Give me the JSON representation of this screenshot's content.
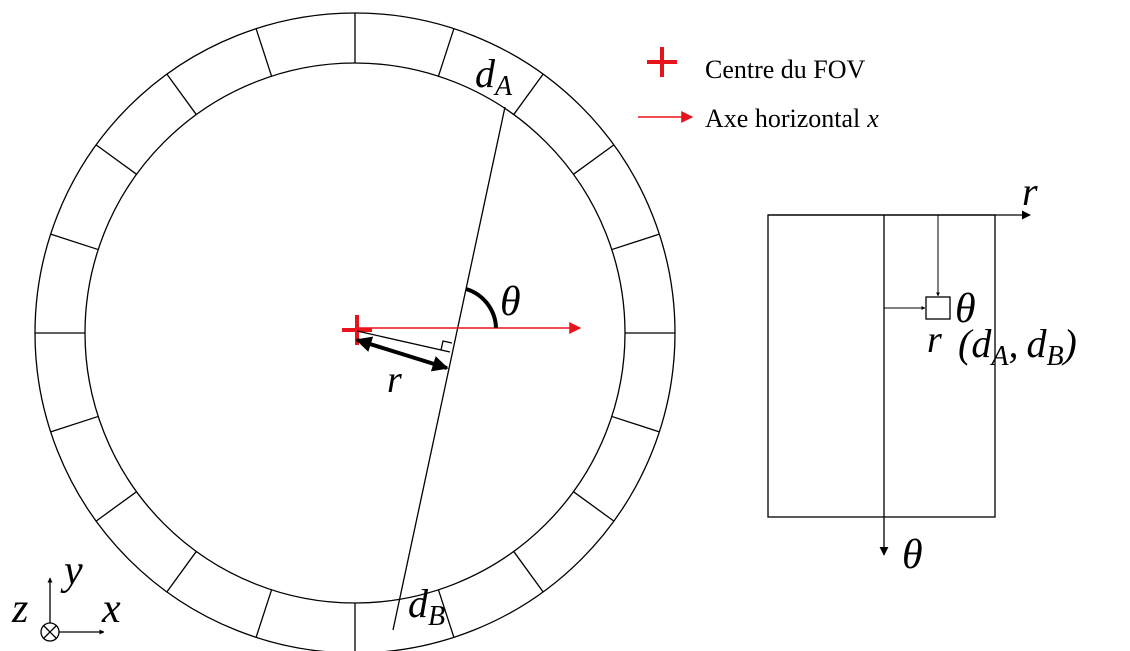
{
  "legend": {
    "centre": "Centre du FOV",
    "axis": {
      "text": "Axe horizontal",
      "var": "x"
    }
  },
  "circle": {
    "dA": {
      "base": "d",
      "sub": "A"
    },
    "dB": {
      "base": "d",
      "sub": "B"
    },
    "theta": "θ",
    "r": "r"
  },
  "grid": {
    "r_axis": "r",
    "theta_axis": "θ",
    "theta_cell": "θ",
    "r_cell": "r",
    "cell": {
      "open": "(",
      "dA": {
        "base": "d",
        "sub": "A"
      },
      "sep": ",",
      "dB": {
        "base": "d",
        "sub": "B"
      },
      "close": ")"
    }
  },
  "axes": {
    "x": "x",
    "y": "y",
    "z": "z"
  }
}
